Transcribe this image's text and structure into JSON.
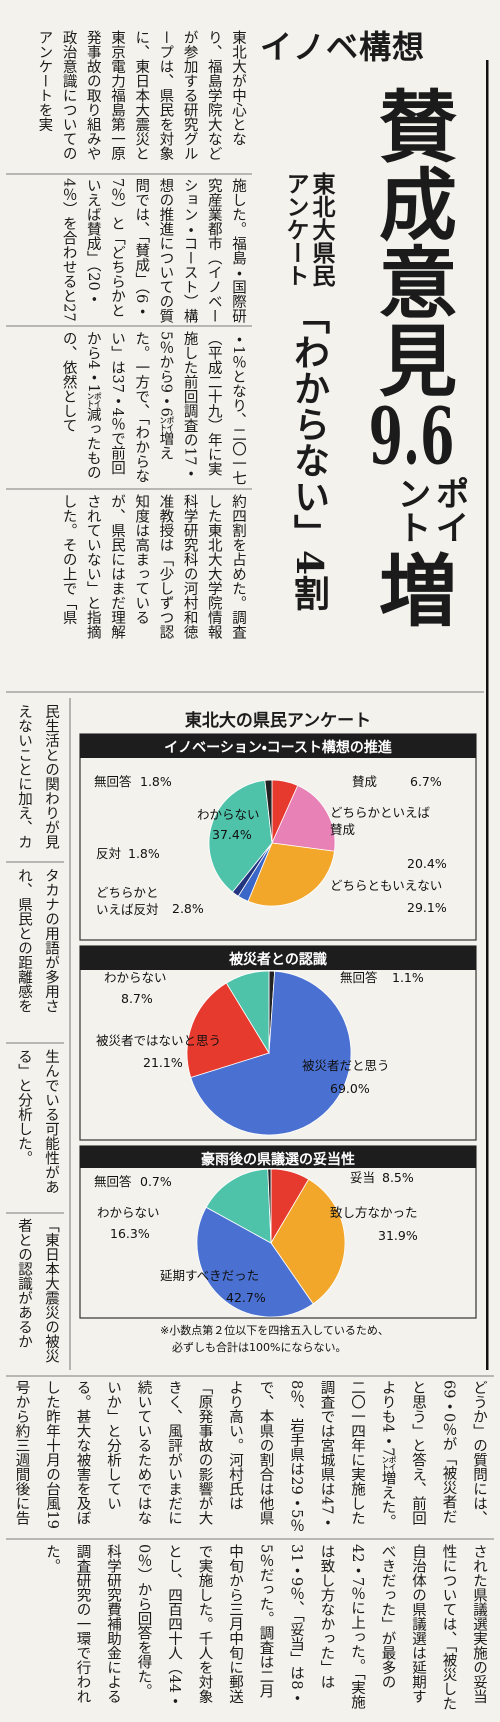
{
  "kicker": "イノベ構想",
  "headline": {
    "main": "賛成意見",
    "number": "9.6",
    "unit": "ポイント",
    "suffix": "増"
  },
  "subheadline": [
    "東北大県民",
    "アンケート"
  ],
  "headline2": "「わからない」4割",
  "article": {
    "top": [
      "東北大が中心となり、福島学院大などが参加する研究グループは、県民を対象に、東日本大震災と東京電力福島第一原発事故の取り組みや政治意識についてのアンケートを実",
      "施した。福島・国際研究産業都市（イノベーション・コースト）構想の推進についての質問では、「賛成」（6・7％）と「どちらかといえば賛成」（20・4％）を合わせると27",
      "・1％となり、二〇一七（平成二十九）年に実施した前回調査の17・5％から9・6㌽増えた。一方で、「わからない」は37・4％で前回から4・1㌽減ったものの、依然として",
      "約四割を占めた。調査した東北大大学院情報科学研究科の河村和徳准教授は「少しずつ認知度は高まっているが、県民にはまだ理解されていない」と指摘した。その上で「県"
    ],
    "side": [
      "民生活との関わりが見えないことに加え、カ",
      "タカナの用語が多用され、県民との距離感を",
      "生んでいる可能性がある」と分析した。",
      "「東日本大震災の被災者との認識があるか"
    ],
    "bottom": [
      "どうか」の質問には、69・0％が「被災者だと思う」と答え、前回よりも4・7㌽増えた。二〇一四年に実施した調査では宮城県は47・8％、岩手県は29・5％で、本県の割合は他県より高い。河村氏は「原発事故の影響が大きく、風評がいまだに続いているためではないか」と分析している。甚大な被害を及ぼした昨年十月の台風19号から約三週間後に告示",
      "された県議選実施の妥当性については、「被災した自治体の県議選は延期すべきだった」が最多の42・7％に上った。「実施は致し方なかった」は31・9％、「妥当」は8・5％だった。調査は二月中旬から三月中旬に郵送で実施した。千人を対象とし、四百四十人（44・0％）から回答を得た。科学研究費補助金による調査研究の一環で行われた。"
    ]
  },
  "figure": {
    "title": "東北大の県民アンケート",
    "panels": [
      {
        "title": "イノベーション・コースト構想の推進",
        "labels": [
          "賛成",
          "どちらかといえば賛成",
          "どちらともいえない",
          "どちらかといえば反対",
          "反対",
          "わからない",
          "無回答"
        ],
        "values": [
          6.7,
          20.4,
          29.1,
          2.8,
          1.8,
          37.4,
          1.8
        ],
        "value_labels": [
          "6.7%",
          "20.4%",
          "29.1%",
          "2.8%",
          "1.8%",
          "37.4%",
          "1.8%"
        ],
        "colors": [
          "#e63a2e",
          "#e881b6",
          "#f2a62a",
          "#3a67c8",
          "#23357f",
          "#4fc2aa",
          "#222222"
        ]
      },
      {
        "title": "被災者との認識",
        "labels": [
          "無回答",
          "被災者だと思う",
          "被災者ではないと思う",
          "わからない"
        ],
        "values": [
          1.1,
          69.0,
          21.1,
          8.7
        ],
        "value_labels": [
          "1.1%",
          "69.0%",
          "21.1%",
          "8.7%"
        ],
        "colors": [
          "#222222",
          "#4a70d2",
          "#e63a2e",
          "#4fc2aa"
        ]
      },
      {
        "title": "豪雨後の県議選の妥当性",
        "labels": [
          "妥当",
          "致し方なかった",
          "延期すべきだった",
          "わからない",
          "無回答"
        ],
        "values": [
          8.5,
          31.9,
          42.7,
          16.3,
          0.7
        ],
        "value_labels": [
          "8.5%",
          "31.9%",
          "42.7%",
          "16.3%",
          "0.7%"
        ],
        "colors": [
          "#e63a2e",
          "#f2a62a",
          "#4a70d2",
          "#4fc2aa",
          "#222222"
        ]
      }
    ],
    "note": [
      "※小数点第２位以下を四捨五入しているため、",
      "必ずしも合計は100%にならない。"
    ]
  }
}
